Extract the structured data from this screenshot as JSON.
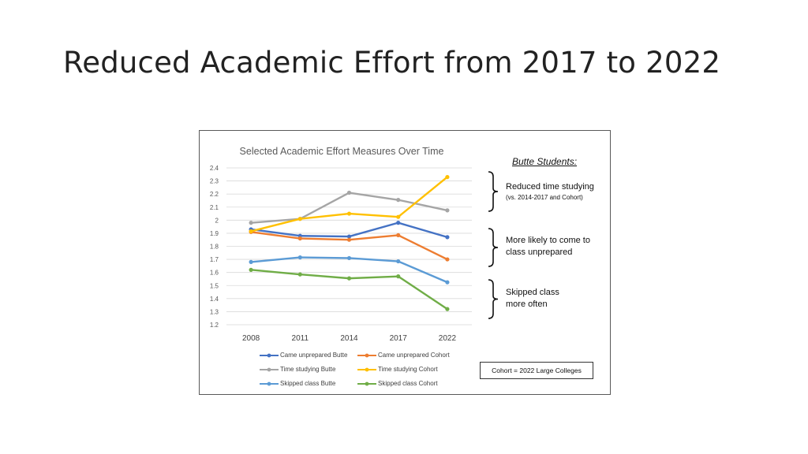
{
  "slide": {
    "title": "Reduced Academic Effort from 2017 to 2022"
  },
  "sidebar": {
    "heading": "Butte Students:",
    "annotations": [
      {
        "line1": "Reduced time studying",
        "line2": "(vs. 2014-2017 and Cohort)"
      },
      {
        "line1": "More likely to come to",
        "line2": "class unprepared"
      },
      {
        "line1": "Skipped class",
        "line2": "more often"
      }
    ],
    "cohort_note": "Cohort = 2022 Large Colleges"
  },
  "colors": {
    "blue": "#4472C4",
    "orange": "#ED7D31",
    "gray": "#A5A5A5",
    "gold": "#FFC000",
    "lightblue": "#5B9BD5",
    "green": "#70AD47"
  },
  "chart_data": {
    "type": "line",
    "title": "Selected Academic Effort Measures Over Time",
    "categories": [
      "2008",
      "2011",
      "2014",
      "2017",
      "2022"
    ],
    "ylim": [
      1.2,
      2.4
    ],
    "yticks": [
      "1.2",
      "1.3",
      "1.4",
      "1.5",
      "1.6",
      "1.7",
      "1.8",
      "1.9",
      "2",
      "2.1",
      "2.2",
      "2.3",
      "2.4"
    ],
    "grid": true,
    "legend_position": "bottom",
    "series": [
      {
        "name": "Came unprepared Butte",
        "color": "#4472C4",
        "values": [
          1.93,
          1.88,
          1.875,
          1.98,
          1.87
        ]
      },
      {
        "name": "Came unprepared Cohort",
        "color": "#ED7D31",
        "values": [
          1.91,
          1.86,
          1.85,
          1.885,
          1.7
        ]
      },
      {
        "name": "Time studying Butte",
        "color": "#A5A5A5",
        "values": [
          1.98,
          2.01,
          2.21,
          2.155,
          2.075
        ]
      },
      {
        "name": "Time studying Cohort",
        "color": "#FFC000",
        "values": [
          1.915,
          2.01,
          2.05,
          2.025,
          2.33
        ]
      },
      {
        "name": "Skipped class Butte",
        "color": "#5B9BD5",
        "values": [
          1.68,
          1.715,
          1.71,
          1.685,
          1.525
        ]
      },
      {
        "name": "Skipped class Cohort",
        "color": "#70AD47",
        "values": [
          1.62,
          1.585,
          1.555,
          1.57,
          1.32
        ]
      }
    ]
  }
}
